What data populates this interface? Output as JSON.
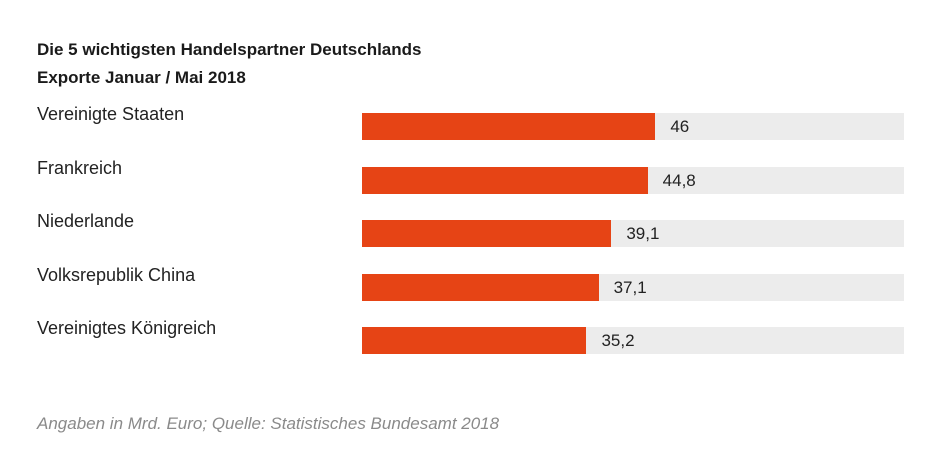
{
  "title": "Die 5 wichtigsten Handelspartner Deutschlands",
  "subtitle": "Exporte Januar / Mai 2018",
  "footnote": "Angaben in Mrd. Euro; Quelle: Statistisches Bundesamt 2018",
  "colors": {
    "bar": "#e64415",
    "track": "#ececec"
  },
  "chart_data": {
    "type": "bar",
    "orientation": "horizontal",
    "title": "Die 5 wichtigsten Handelspartner Deutschlands",
    "subtitle": "Exporte Januar / Mai 2018",
    "categories": [
      "Vereinigte Staaten",
      "Frankreich",
      "Niederlande",
      "Volksrepublik China",
      "Vereinigtes Königreich"
    ],
    "values": [
      46,
      44.8,
      39.1,
      37.1,
      35.2
    ],
    "value_labels": [
      "46",
      "44,8",
      "39,1",
      "37,1",
      "35,2"
    ],
    "xlim": [
      0,
      85
    ],
    "grid": false,
    "legend": "none"
  }
}
